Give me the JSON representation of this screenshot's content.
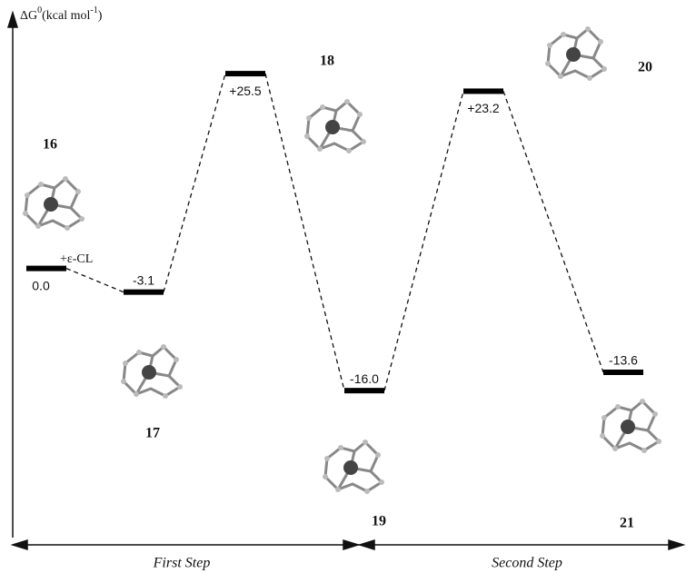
{
  "chart_data": {
    "type": "energy-profile",
    "y_label": {
      "symbol": "ΔG",
      "symbol_sup": "0",
      "unit": "(kcal mol",
      "unit_sup": "-1",
      "unit_end": ")"
    },
    "categories": [
      "16",
      "17",
      "18",
      "19",
      "20",
      "21"
    ],
    "values": [
      0,
      -3.1,
      25.5,
      -16,
      23.2,
      -13.6
    ],
    "value_labels": [
      "0.0",
      "-3.1",
      "+25.5",
      "-16.0",
      "+23.2",
      "-13.6"
    ],
    "ylim": [
      -35,
      33
    ],
    "annotation": "+ε-CL",
    "steps": [
      "First Step",
      "Second Step"
    ],
    "color": "#000000"
  }
}
